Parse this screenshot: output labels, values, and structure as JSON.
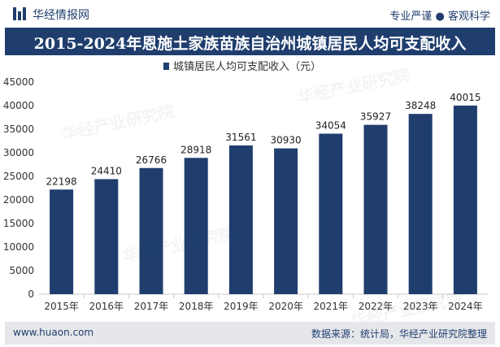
{
  "header": {
    "brand": "华经情报网",
    "tagline": "专业严谨 ● 客观科学"
  },
  "footer": {
    "website": "www.huaon.com",
    "source": "数据来源：统计局，华经产业研究院整理"
  },
  "watermark": "华经产业研究院",
  "colors": {
    "bar": "#1f3e6e",
    "title_bg": "#1f3e6e",
    "footer_bg": "#e6e7ea"
  },
  "chart_data": {
    "type": "bar",
    "title": "2015-2024年恩施土家族苗族自治州城镇居民人均可支配收入",
    "categories": [
      "2015年",
      "2016年",
      "2017年",
      "2018年",
      "2019年",
      "2020年",
      "2021年",
      "2022年",
      "2023年",
      "2024年"
    ],
    "series": [
      {
        "name": "城镇居民人均可支配收入（元）",
        "values": [
          22198,
          24410,
          26766,
          28918,
          31561,
          30930,
          34054,
          35927,
          38248,
          40015
        ]
      }
    ],
    "ylim": [
      0,
      45000
    ],
    "yticks": [
      0,
      5000,
      10000,
      15000,
      20000,
      25000,
      30000,
      35000,
      40000,
      45000
    ],
    "grid": false,
    "legend_position": "top-center",
    "data_labels": true
  }
}
